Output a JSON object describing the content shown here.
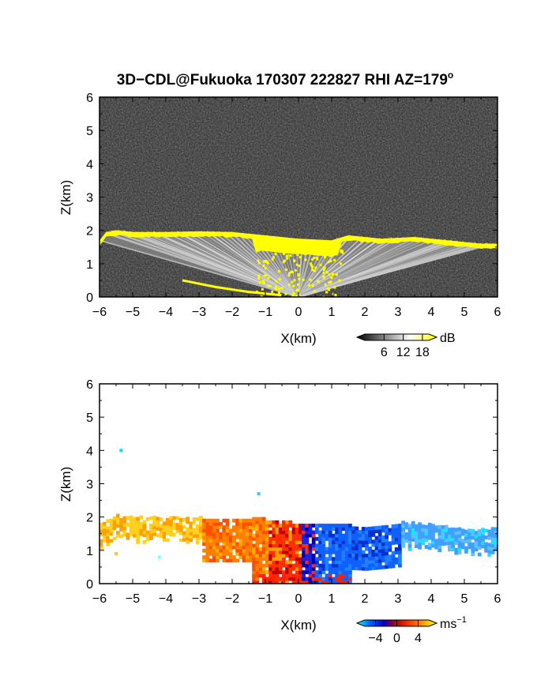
{
  "title": {
    "main": "3D−CDL@Fukuoka 170307 222827 RHI AZ=179",
    "sup": "o"
  },
  "chart_data": [
    {
      "type": "heatmap",
      "name": "backscatter",
      "xlabel": "X(km)",
      "ylabel": "Z(km)",
      "xlim": [
        -6,
        6
      ],
      "ylim": [
        0,
        6
      ],
      "xticks": [
        "−6",
        "−5",
        "−4",
        "−3",
        "−2",
        "−1",
        "0",
        "1",
        "2",
        "3",
        "4",
        "5",
        "6"
      ],
      "yticks": [
        "0",
        "1",
        "2",
        "3",
        "4",
        "5",
        "6"
      ],
      "grid": false,
      "background_color": "#262626",
      "colorbar": {
        "unit": "dB",
        "ticks": [
          "6",
          "12",
          "18"
        ],
        "tick_values": [
          6,
          12,
          18
        ],
        "range": [
          0,
          20
        ],
        "colors": [
          "#000000",
          "#808080",
          "#ffffff",
          "#ffff00"
        ]
      },
      "layer_top_km": [
        {
          "x": -6.0,
          "z": 1.7
        },
        {
          "x": -5.8,
          "z": 1.95
        },
        {
          "x": -5.5,
          "z": 2.0
        },
        {
          "x": -5.0,
          "z": 1.95
        },
        {
          "x": -4.5,
          "z": 1.95
        },
        {
          "x": -4.0,
          "z": 1.95
        },
        {
          "x": -3.0,
          "z": 1.97
        },
        {
          "x": -2.0,
          "z": 1.95
        },
        {
          "x": -1.0,
          "z": 1.85
        },
        {
          "x": 0.0,
          "z": 1.75
        },
        {
          "x": 1.0,
          "z": 1.7
        },
        {
          "x": 1.5,
          "z": 1.85
        },
        {
          "x": 2.5,
          "z": 1.75
        },
        {
          "x": 3.5,
          "z": 1.8
        },
        {
          "x": 4.5,
          "z": 1.7
        },
        {
          "x": 5.5,
          "z": 1.6
        },
        {
          "x": 6.0,
          "z": 1.6
        }
      ],
      "low_layer_km": [
        {
          "x": -3.5,
          "z": 0.5
        },
        {
          "x": -2.5,
          "z": 0.3
        },
        {
          "x": -1.5,
          "z": 0.15
        },
        {
          "x": -0.5,
          "z": 0.05
        }
      ]
    },
    {
      "type": "heatmap",
      "name": "doppler_velocity",
      "xlabel": "X(km)",
      "ylabel": "Z(km)",
      "xlim": [
        -6,
        6
      ],
      "ylim": [
        0,
        6
      ],
      "xticks": [
        "−6",
        "−5",
        "−4",
        "−3",
        "−2",
        "−1",
        "0",
        "1",
        "2",
        "3",
        "4",
        "5",
        "6"
      ],
      "yticks": [
        "0",
        "1",
        "2",
        "3",
        "4",
        "5",
        "6"
      ],
      "grid": false,
      "background_color": "#ffffff",
      "colorbar": {
        "unit": "ms",
        "unit_sup": "−1",
        "ticks": [
          "−4",
          "0",
          "4"
        ],
        "tick_values": [
          -4,
          0,
          4
        ],
        "range": [
          -6,
          6
        ],
        "colors": [
          "#00ffff",
          "#0060ff",
          "#0000c0",
          "#c00000",
          "#ff4000",
          "#ffa000",
          "#ffff00"
        ]
      },
      "echo_region_km": {
        "left_top": [
          {
            "x": -6.0,
            "z": 1.75
          },
          {
            "x": -5.5,
            "z": 2.0
          },
          {
            "x": -4.5,
            "z": 1.95
          },
          {
            "x": -3.0,
            "z": 1.95
          },
          {
            "x": -1.5,
            "z": 1.95
          },
          {
            "x": -0.5,
            "z": 1.85
          },
          {
            "x": 0.0,
            "z": 1.75
          }
        ],
        "right_top": [
          {
            "x": 0.0,
            "z": 1.75
          },
          {
            "x": 1.0,
            "z": 1.75
          },
          {
            "x": 2.0,
            "z": 1.7
          },
          {
            "x": 3.0,
            "z": 1.8
          },
          {
            "x": 4.0,
            "z": 1.75
          },
          {
            "x": 5.0,
            "z": 1.6
          },
          {
            "x": 6.0,
            "z": 1.6
          }
        ]
      },
      "isolated_points_km": [
        {
          "x": -5.35,
          "z": 4.0,
          "color": "#00e0ff"
        },
        {
          "x": -1.2,
          "z": 2.7,
          "color": "#40c0ff"
        },
        {
          "x": -5.5,
          "z": 0.9,
          "color": "#ffc040"
        },
        {
          "x": -4.2,
          "z": 0.8,
          "color": "#80ffff"
        }
      ]
    }
  ]
}
